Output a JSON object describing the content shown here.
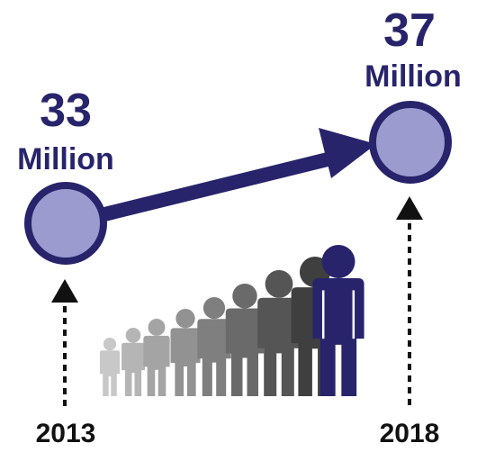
{
  "start": {
    "value": "33",
    "unit": "Million",
    "year": "2013"
  },
  "end": {
    "value": "37",
    "unit": "Million",
    "year": "2018"
  },
  "colors": {
    "navy": "#27246b",
    "circle_fill": "#9b9bd0",
    "people_gradient": [
      "#c8c8c8",
      "#b5b5b5",
      "#a4a4a4",
      "#929292",
      "#7f7f7f",
      "#6a6a6a",
      "#555555",
      "#3f3f3f",
      "#27246b"
    ]
  },
  "icons": {
    "person": "person-icon",
    "arrow": "arrow-icon",
    "timeline_marker": "up-arrow-icon"
  }
}
